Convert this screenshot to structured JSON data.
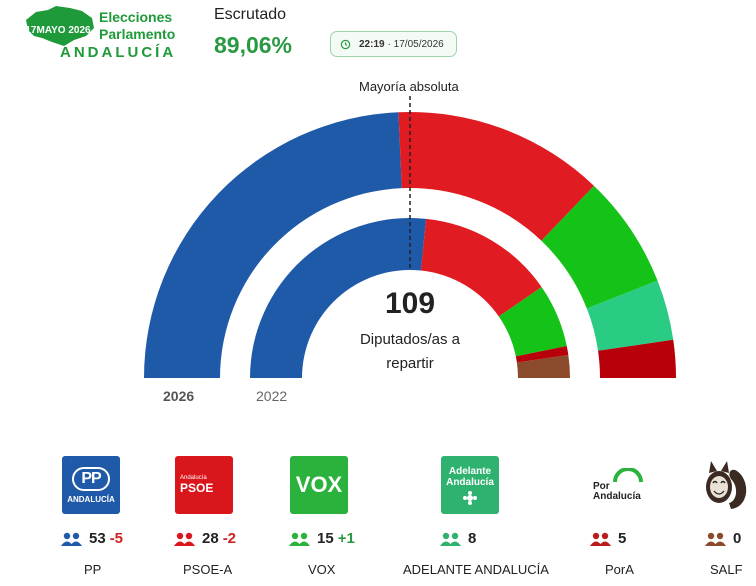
{
  "header": {
    "brand_date": "17MAYO 2026",
    "brand_line1": "Elecciones",
    "brand_line2": "Parlamento",
    "brand_line3": "ANDALUCÍA",
    "scrutiny_label": "Escrutado",
    "scrutiny_value": "89,06%",
    "update_time": "22:19",
    "update_date": "· 17/05/2026"
  },
  "chart": {
    "majority_label": "Mayoría absoluta",
    "total_seats": "109",
    "total_label_line1": "Diputados/as a",
    "total_label_line2": "repartir",
    "current_year": "2026",
    "previous_year": "2022"
  },
  "chart_data": {
    "type": "hemicycle",
    "total": 109,
    "majority": 55,
    "series": [
      {
        "name": "2026",
        "values": [
          53,
          28,
          15,
          8,
          5,
          0
        ]
      },
      {
        "name": "2022",
        "values": [
          58,
          30,
          14,
          0,
          2,
          5
        ]
      }
    ],
    "categories": [
      "PP",
      "PSOE-A",
      "VOX",
      "ADELANTE ANDALUCÍA",
      "PorA",
      "SALF"
    ],
    "colors": [
      "#1f5aa8",
      "#e11b22",
      "#14c218",
      "#29cc82",
      "#b8000a",
      "#8b4a2b"
    ]
  },
  "parties": [
    {
      "name": "PP",
      "seats": "53",
      "diff": "-5",
      "color": "#1f5aa8",
      "diff_color": "#d01f1f",
      "logo_text": "PP",
      "logo_sub": "ANDALUCÍA"
    },
    {
      "name": "PSOE-A",
      "seats": "28",
      "diff": "-2",
      "color": "#d8161c",
      "diff_color": "#d01f1f",
      "logo_text": "PSOE",
      "logo_sub": "Andalucía"
    },
    {
      "name": "VOX",
      "seats": "15",
      "diff": "+1",
      "color": "#2bb23c",
      "diff_color": "#2a9a42",
      "logo_text": "VOX",
      "logo_sub": ""
    },
    {
      "name": "ADELANTE ANDALUCÍA",
      "seats": "8",
      "diff": "",
      "color": "#2fb26f",
      "diff_color": "#2a9a42",
      "logo_text": "Adelante",
      "logo_sub": "Andalucía"
    },
    {
      "name": "PorA",
      "seats": "5",
      "diff": "",
      "color": "#b81c1c",
      "diff_color": "#2a9a42",
      "logo_text": "Por",
      "logo_sub": "Andalucía"
    },
    {
      "name": "SALF",
      "seats": "0",
      "diff": "",
      "color": "#8b4a2b",
      "diff_color": "#2a9a42",
      "logo_text": "",
      "logo_sub": ""
    }
  ]
}
